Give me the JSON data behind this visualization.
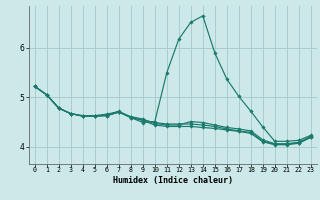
{
  "title": "",
  "xlabel": "Humidex (Indice chaleur)",
  "bg_color": "#cce8e8",
  "grid_color": "#aacccc",
  "line_color": "#1a7a6e",
  "xlim": [
    -0.5,
    23.5
  ],
  "ylim": [
    3.65,
    6.85
  ],
  "xticks": [
    0,
    1,
    2,
    3,
    4,
    5,
    6,
    7,
    8,
    9,
    10,
    11,
    12,
    13,
    14,
    15,
    16,
    17,
    18,
    19,
    20,
    21,
    22,
    23
  ],
  "yticks": [
    4,
    5,
    6
  ],
  "series": [
    [
      5.22,
      5.05,
      4.78,
      4.67,
      4.62,
      4.62,
      4.63,
      4.7,
      4.6,
      4.53,
      4.44,
      4.41,
      4.41,
      4.41,
      4.39,
      4.37,
      4.34,
      4.31,
      4.27,
      4.1,
      4.04,
      4.04,
      4.07,
      4.19
    ],
    [
      5.22,
      5.05,
      4.78,
      4.67,
      4.63,
      4.63,
      4.66,
      4.71,
      4.61,
      4.56,
      4.47,
      4.44,
      4.44,
      4.51,
      4.49,
      4.44,
      4.39,
      4.36,
      4.32,
      4.14,
      4.06,
      4.06,
      4.09,
      4.21
    ],
    [
      5.22,
      5.05,
      4.78,
      4.67,
      4.62,
      4.62,
      4.64,
      4.72,
      4.59,
      4.54,
      4.49,
      4.46,
      4.46,
      4.46,
      4.44,
      4.41,
      4.36,
      4.32,
      4.29,
      4.11,
      4.05,
      4.05,
      4.08,
      4.19
    ],
    [
      5.22,
      5.05,
      4.78,
      4.67,
      4.62,
      4.62,
      4.63,
      4.7,
      4.59,
      4.49,
      4.51,
      5.5,
      6.18,
      6.52,
      6.65,
      5.9,
      5.37,
      5.02,
      4.72,
      4.4,
      4.11,
      4.11,
      4.13,
      4.23
    ]
  ]
}
